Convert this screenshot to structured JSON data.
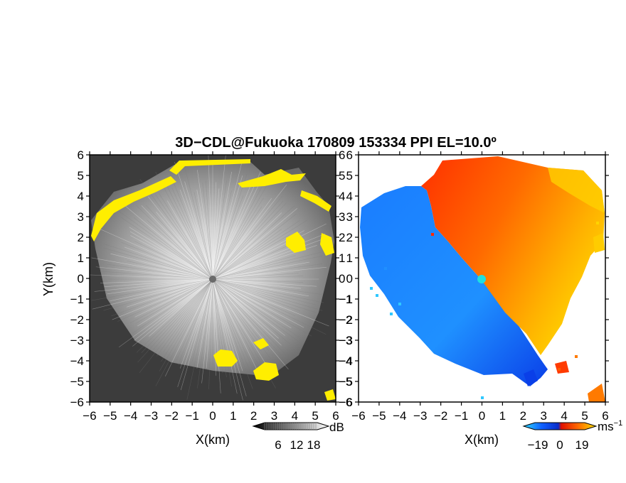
{
  "chart_data": [
    {
      "type": "heatmap",
      "panel": "left",
      "field": "SNR",
      "xlabel": "X(km)",
      "ylabel": "Y(km)",
      "xlim": [
        -6,
        6
      ],
      "ylim": [
        -6,
        6
      ],
      "xticks": [
        -6,
        -5,
        -4,
        -3,
        -2,
        -1,
        0,
        1,
        2,
        3,
        4,
        5,
        6
      ],
      "yticks": [
        -6,
        -5,
        -4,
        -3,
        -2,
        -1,
        0,
        1,
        2,
        3,
        4,
        5,
        6
      ],
      "colorscale": "grayscale (dark to light) with yellow for high values",
      "colorbar": {
        "unit": "dB",
        "ticks": [
          "6",
          "12",
          "18"
        ],
        "min": 0,
        "max": 24
      },
      "radar_center": [
        0,
        0
      ]
    },
    {
      "type": "heatmap",
      "panel": "right",
      "field": "radial velocity",
      "xlabel": "X(km)",
      "ylabel": "",
      "xlim": [
        -6,
        6
      ],
      "ylim": [
        -6,
        6
      ],
      "xticks": [
        -6,
        -5,
        -4,
        -3,
        -2,
        -1,
        0,
        1,
        2,
        3,
        4,
        5,
        6
      ],
      "yticks": [
        -6,
        -5,
        -4,
        -3,
        -2,
        -1,
        0,
        1,
        2,
        3,
        4,
        5,
        6
      ],
      "colorscale": "cyan-blue (negative) to red-orange-yellow (positive)",
      "colorbar": {
        "unit": "ms",
        "unit_exp": "−1",
        "ticks": [
          "−19",
          "0",
          "19"
        ],
        "min": -25,
        "max": 25
      },
      "radar_center": [
        0,
        0
      ]
    }
  ],
  "title": "3D−CDL@Fukuoka 170809 153334 PPI EL=10.0º",
  "colors": {
    "snr_high": "#ffee00",
    "vel_neg_light": "#2fc8ff",
    "vel_neg_dark": "#0a3fe8",
    "vel_pos_dark": "#ff2a00",
    "vel_pos_light": "#ffd400",
    "radar_marker_right": "#1fe0e0"
  }
}
